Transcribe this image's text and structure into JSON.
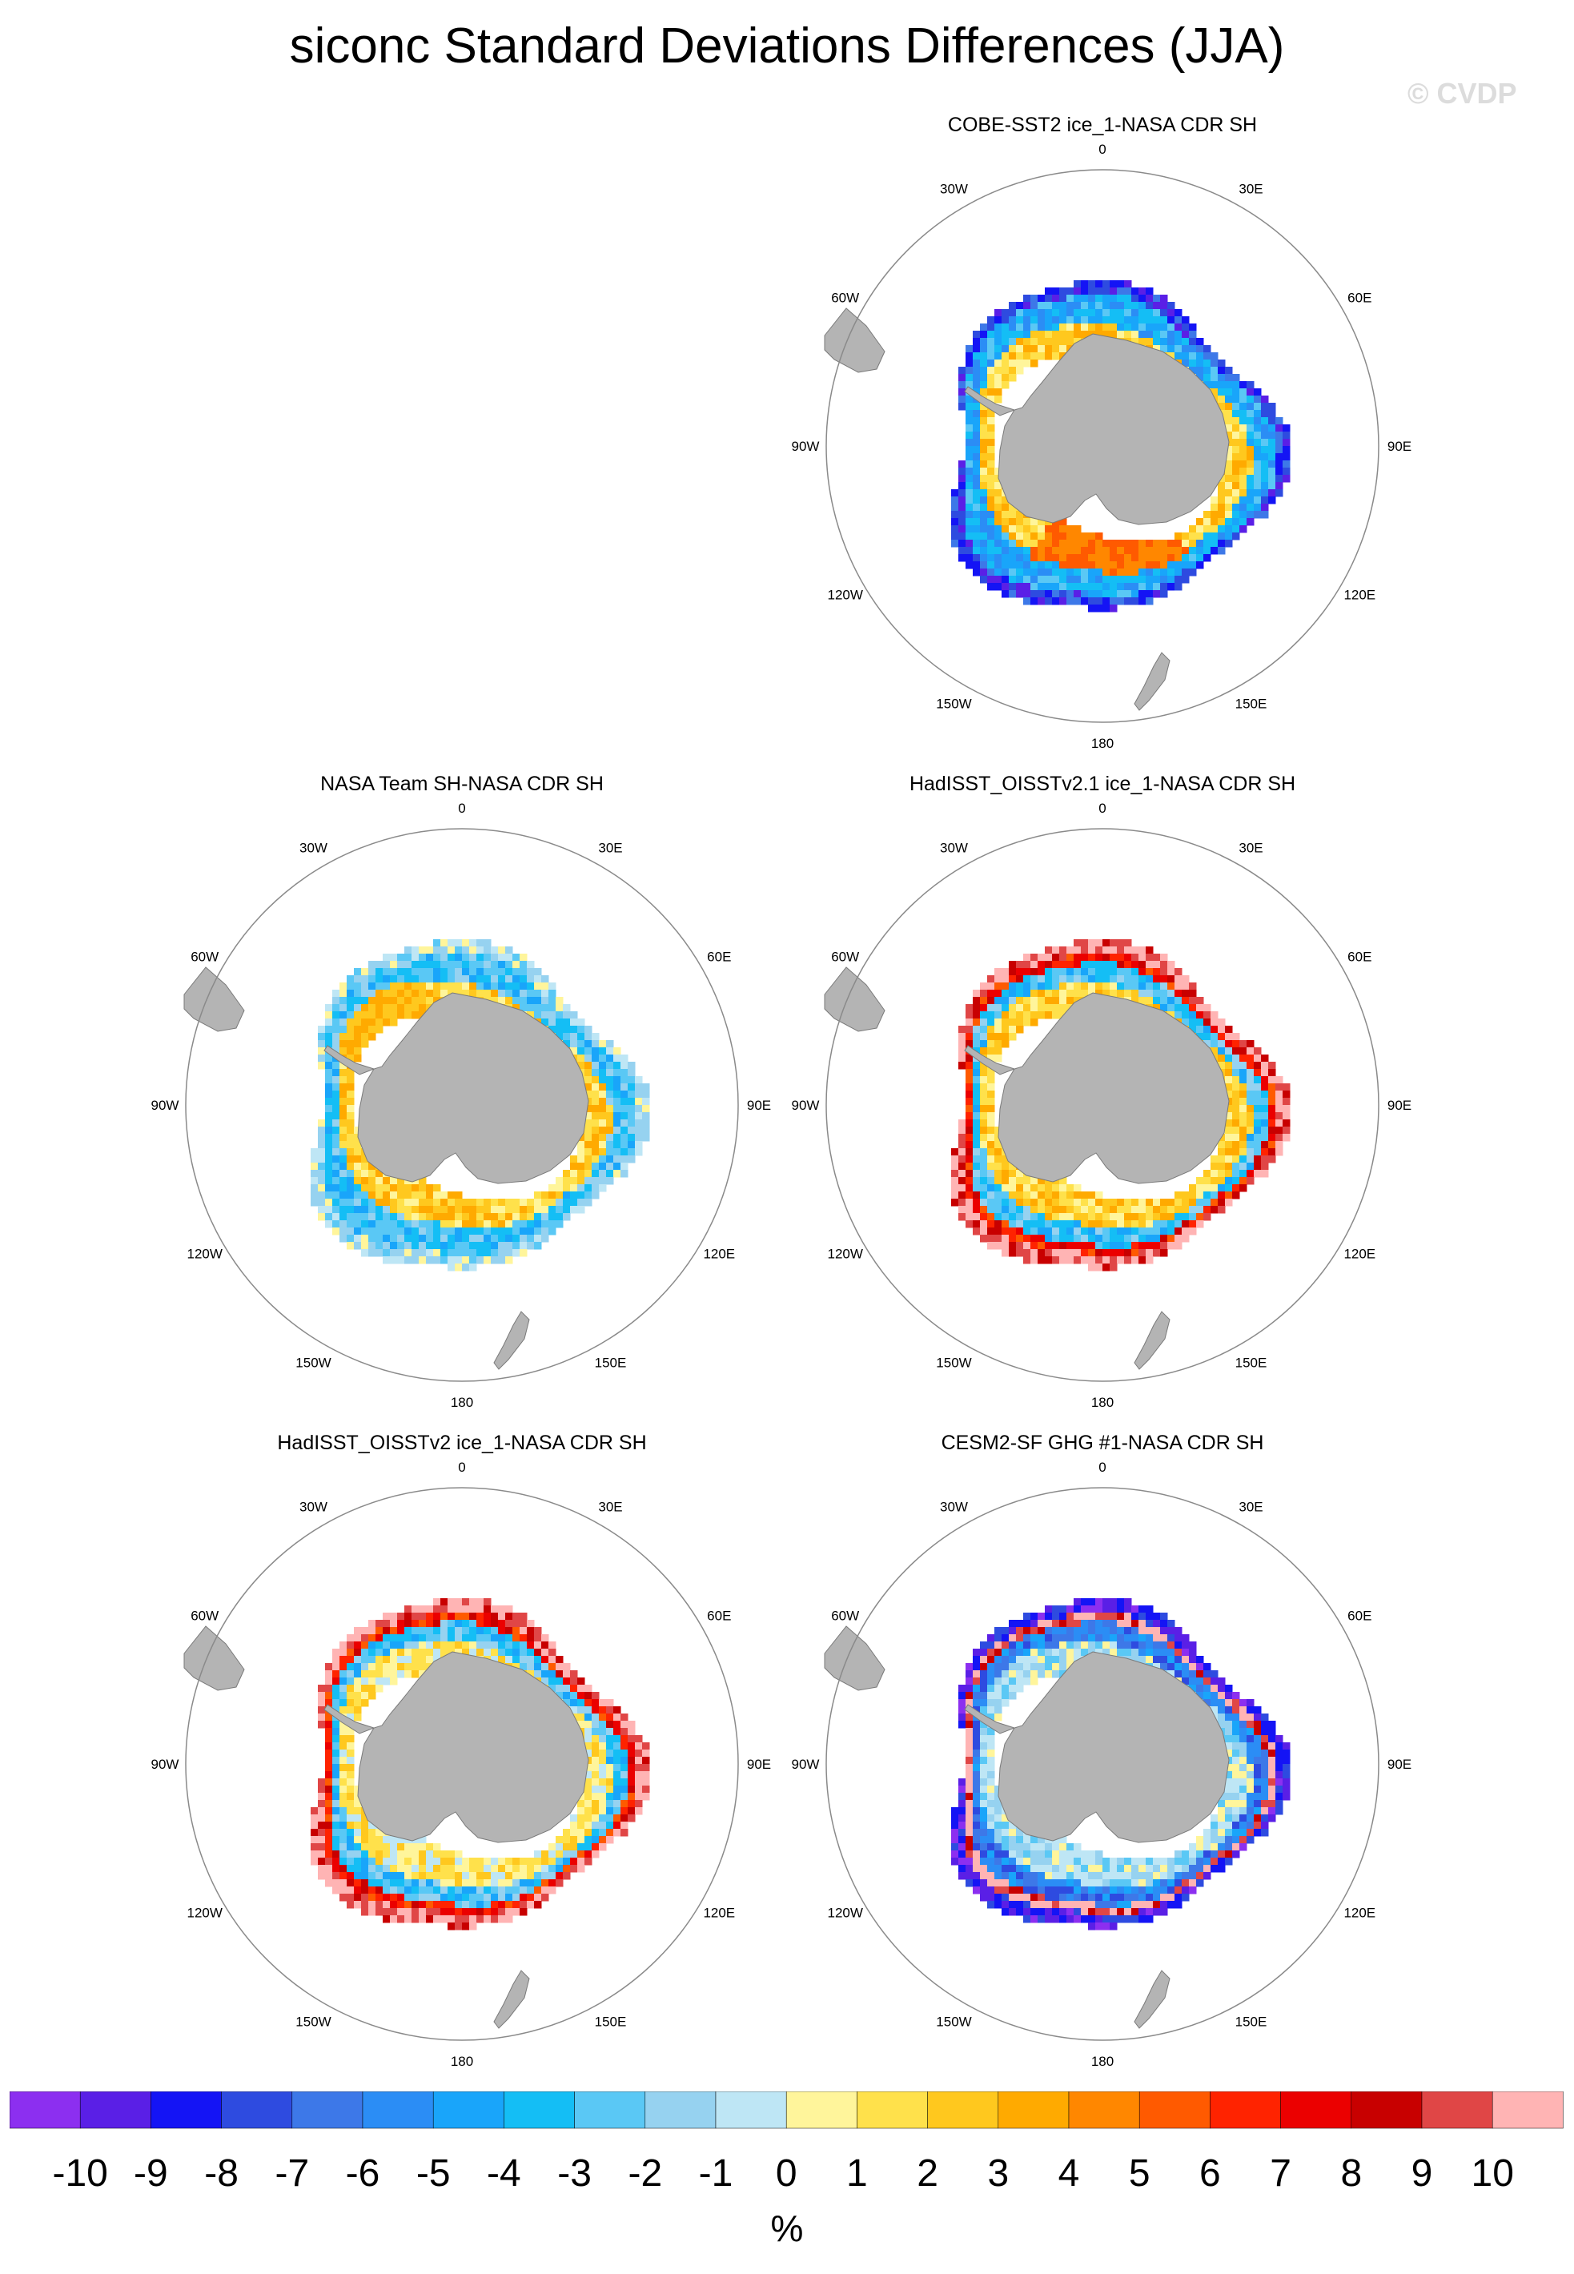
{
  "title": "siconc Standard Deviations Differences (JJA)",
  "watermark": "© CVDP",
  "units": "%",
  "colors": {
    "land": "#b4b4b4",
    "coast": "#7a7a7a",
    "circle": "#8a8a8a"
  },
  "colorbar": {
    "labels": [
      "-10",
      "-9",
      "-8",
      "-7",
      "-6",
      "-5",
      "-4",
      "-3",
      "-2",
      "-1",
      "0",
      "1",
      "2",
      "3",
      "4",
      "5",
      "6",
      "7",
      "8",
      "9",
      "10"
    ],
    "colors": [
      "#8c2ff0",
      "#5a1fe6",
      "#1414f5",
      "#2e4be0",
      "#3d78e8",
      "#2b8df5",
      "#19a5fa",
      "#14bef5",
      "#5ac8f5",
      "#96d2f0",
      "#bee6f5",
      "#fff59b",
      "#ffe14b",
      "#ffc81e",
      "#ffaa00",
      "#ff8700",
      "#ff5a00",
      "#ff2300",
      "#eb0000",
      "#c80000",
      "#e04646",
      "#ffb4b4"
    ]
  },
  "chart_data": [
    {
      "type": "heatmap",
      "title": "COBE-SST2 ice_1-NASA CDR SH",
      "lon_labels": [
        "0",
        "30E",
        "60E",
        "90E",
        "120E",
        "150E",
        "180",
        "150W",
        "120W",
        "90W",
        "60W",
        "30W"
      ],
      "colorscale_range": [
        -10,
        10
      ],
      "ring_pattern": [
        {
          "band": "outer",
          "dominant_value": -8
        },
        {
          "band": "middle",
          "dominant_value": -4
        },
        {
          "band": "inner",
          "dominant_value": 2
        },
        {
          "region": "Ross Sea",
          "dominant_value": 5
        }
      ]
    },
    {
      "type": "heatmap",
      "title": "NASA Team SH-NASA CDR SH",
      "lon_labels": [
        "0",
        "30E",
        "60E",
        "90E",
        "120E",
        "150E",
        "180",
        "150W",
        "120W",
        "90W",
        "60W",
        "30W"
      ],
      "colorscale_range": [
        -10,
        10
      ],
      "ring_pattern": [
        {
          "band": "outer",
          "dominant_value": -1
        },
        {
          "band": "middle",
          "dominant_value": -3
        },
        {
          "band": "inner",
          "dominant_value": 2
        },
        {
          "region": "Weddell Sea",
          "dominant_value": 3
        }
      ]
    },
    {
      "type": "heatmap",
      "title": "HadISST_OISSTv2.1 ice_1-NASA CDR SH",
      "lon_labels": [
        "0",
        "30E",
        "60E",
        "90E",
        "120E",
        "150E",
        "180",
        "150W",
        "120W",
        "90W",
        "60W",
        "30W"
      ],
      "colorscale_range": [
        -10,
        10
      ],
      "ring_pattern": [
        {
          "band": "outer",
          "dominant_value": 10
        },
        {
          "band": "edge",
          "dominant_value": 7
        },
        {
          "band": "middle",
          "dominant_value": -3
        },
        {
          "band": "inner",
          "dominant_value": 2
        }
      ]
    },
    {
      "type": "heatmap",
      "title": "HadISST_OISSTv2 ice_1-NASA CDR SH",
      "lon_labels": [
        "0",
        "30E",
        "60E",
        "90E",
        "120E",
        "150E",
        "180",
        "150W",
        "120W",
        "90W",
        "60W",
        "30W"
      ],
      "colorscale_range": [
        -10,
        10
      ],
      "ring_pattern": [
        {
          "band": "outer",
          "dominant_value": 10
        },
        {
          "band": "edge",
          "dominant_value": 7
        },
        {
          "band": "middle",
          "dominant_value": -3
        },
        {
          "band": "inner",
          "dominant_value": 1
        }
      ]
    },
    {
      "type": "heatmap",
      "title": "CESM2-SF GHG #1-NASA CDR SH",
      "lon_labels": [
        "0",
        "30E",
        "60E",
        "90E",
        "120E",
        "150E",
        "180",
        "150W",
        "120W",
        "90W",
        "60W",
        "30W"
      ],
      "colorscale_range": [
        -10,
        10
      ],
      "ring_pattern": [
        {
          "band": "outer",
          "dominant_value": -9
        },
        {
          "band": "edge",
          "dominant_value": 10
        },
        {
          "band": "middle",
          "dominant_value": -6
        },
        {
          "band": "inner",
          "dominant_value": -1
        }
      ]
    }
  ]
}
